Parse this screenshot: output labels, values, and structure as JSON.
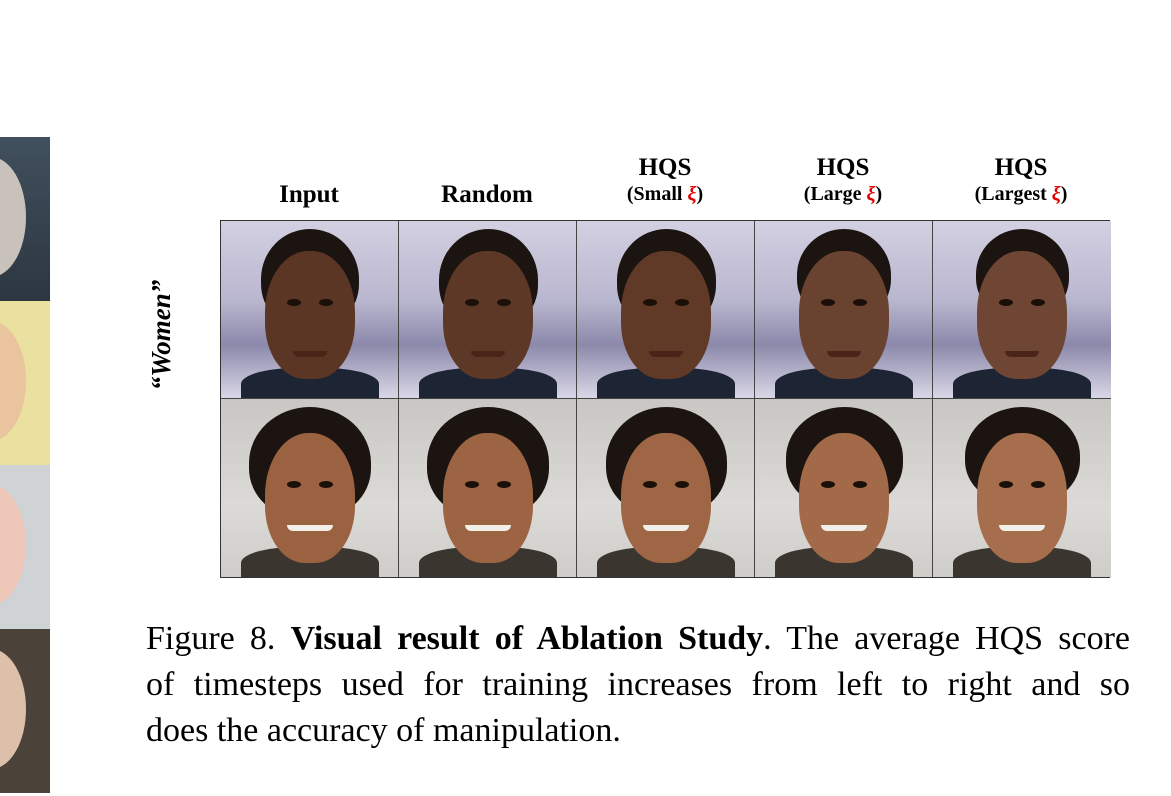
{
  "figure": {
    "columns": [
      {
        "main": "Input",
        "sub": ""
      },
      {
        "main": "Random",
        "sub": ""
      },
      {
        "main": "HQS",
        "sub_prefix": "(Small ",
        "sub_symbol": "ξ",
        "sub_suffix": ")"
      },
      {
        "main": "HQS",
        "sub_prefix": "(Large ",
        "sub_symbol": "ξ",
        "sub_suffix": ")"
      },
      {
        "main": "HQS",
        "sub_prefix": "(Largest ",
        "sub_symbol": "ξ",
        "sub_suffix": ")"
      }
    ],
    "row_label": "“Women”",
    "accent_color": "#e00000"
  },
  "caption": {
    "figure_number": "Figure 8.",
    "bold_title": "Visual result of Ablation Study",
    "text_1": ". The average HQS score",
    "line_2": "of timesteps used for training increases from left to right and so",
    "line_3": "does the accuracy of manipulation."
  }
}
